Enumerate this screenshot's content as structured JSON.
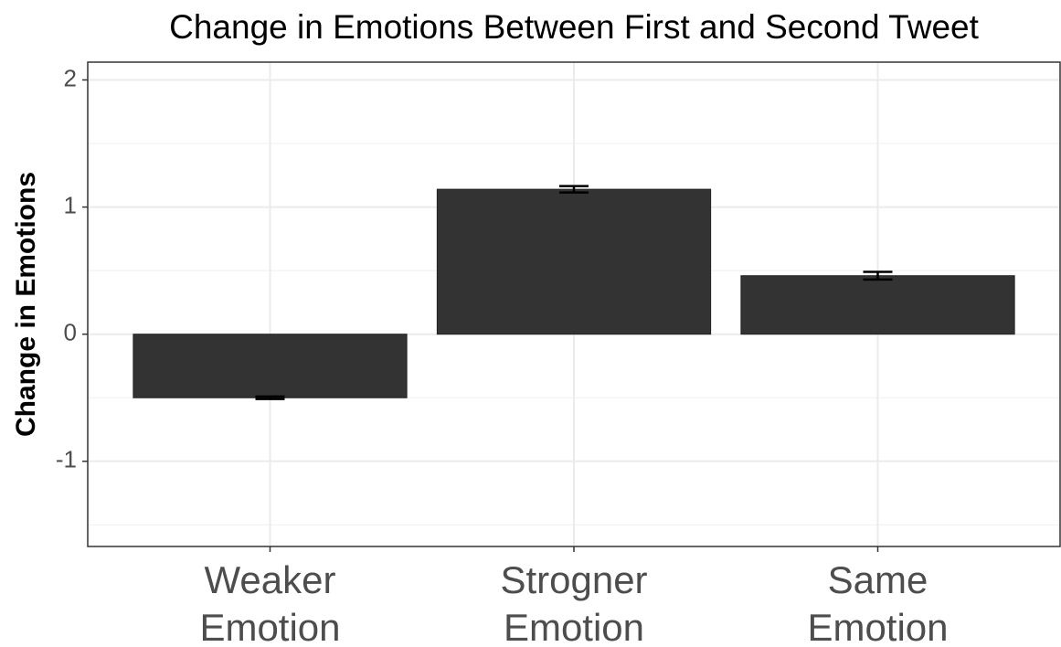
{
  "chart_data": {
    "type": "bar",
    "title": "Change in Emotions Between First and Second Tweet",
    "y_label": "Change in Emotions",
    "categories": [
      "Weaker Emotion",
      "Strogner Emotion",
      "Same Emotion"
    ],
    "values": [
      -0.5,
      1.14,
      0.46
    ],
    "errors": [
      0.01,
      0.025,
      0.03
    ],
    "color": "#333333",
    "ylim": [
      -1.67,
      2.14
    ],
    "yticks": [
      -1,
      0,
      1,
      2
    ],
    "grid": true
  }
}
